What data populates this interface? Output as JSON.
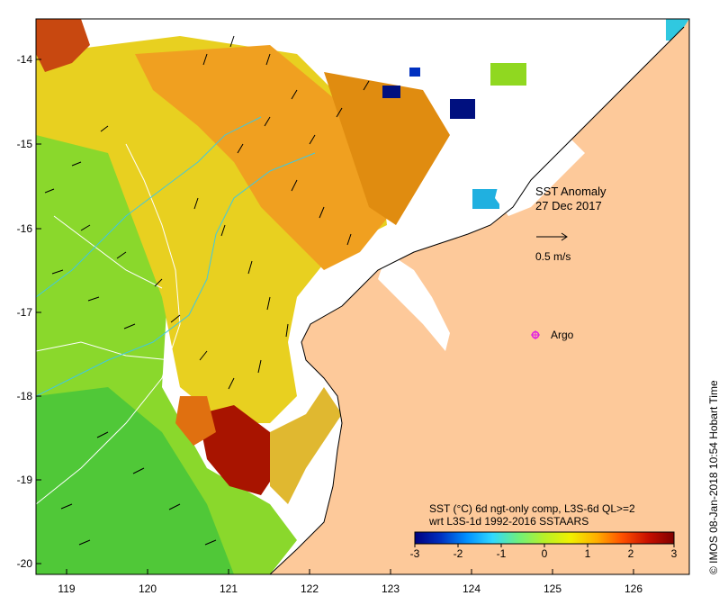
{
  "map": {
    "title": "SST Anomaly",
    "date": "27 Dec 2017",
    "scale_arrow_label": "0.5 m/s",
    "argo_label": "Argo",
    "legend_line1": "SST (°C) 6d ngt-only comp, L3S-6d QL>=2",
    "legend_line2": "wrt L3S-1d 1992-2016 SSTAARS",
    "credit": "© IMOS 08-Jan-2018 10:54 Hobart Time",
    "lon_ticks": [
      "119",
      "120",
      "121",
      "122",
      "123",
      "124",
      "125",
      "126"
    ],
    "lat_ticks": [
      "-14",
      "-15",
      "-16",
      "-17",
      "-18",
      "-19",
      "-20"
    ],
    "colorbar_ticks": [
      "-3",
      "-2",
      "-1",
      "0",
      "1",
      "2",
      "3"
    ],
    "colorbar_colors": [
      "#00007f",
      "#0030c0",
      "#0090ff",
      "#30d8ff",
      "#6ef07c",
      "#b8f028",
      "#f0f000",
      "#ffb000",
      "#ff5000",
      "#c81000",
      "#800000"
    ],
    "land_color": "#fdc99a",
    "ocean_palette": {
      "cold": "#00107f",
      "cool": "#20b0e0",
      "green": "#40d048",
      "lightgreen": "#a0e020",
      "yellow": "#f0e000",
      "orange": "#f0a000",
      "red": "#c04000",
      "darkred": "#a01000"
    }
  }
}
